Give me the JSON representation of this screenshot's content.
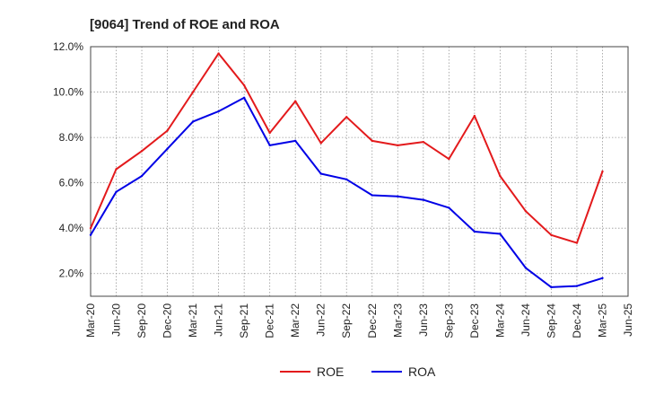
{
  "chart_data": {
    "type": "line",
    "title": "[9064]  Trend of ROE and ROA",
    "xlabel": "",
    "ylabel": "",
    "x": [
      "Mar-20",
      "Jun-20",
      "Sep-20",
      "Dec-20",
      "Mar-21",
      "Jun-21",
      "Sep-21",
      "Dec-21",
      "Mar-22",
      "Jun-22",
      "Sep-22",
      "Dec-22",
      "Mar-23",
      "Jun-23",
      "Sep-23",
      "Dec-23",
      "Mar-24",
      "Jun-24",
      "Sep-24",
      "Dec-24",
      "Mar-25",
      "Jun-25"
    ],
    "ylim": [
      1.0,
      12.0
    ],
    "yticks": [
      "2.0%",
      "4.0%",
      "6.0%",
      "8.0%",
      "10.0%",
      "12.0%"
    ],
    "ytick_values": [
      2.0,
      4.0,
      6.0,
      8.0,
      10.0,
      12.0
    ],
    "grid": true,
    "legend_position": "bottom-center",
    "series": [
      {
        "name": "ROE",
        "color": "#e31a1c",
        "values": [
          4.0,
          6.6,
          7.4,
          8.3,
          10.0,
          11.7,
          10.3,
          8.2,
          9.6,
          7.75,
          8.9,
          7.85,
          7.65,
          7.8,
          7.05,
          8.95,
          6.3,
          4.75,
          3.7,
          3.35,
          6.5,
          null
        ]
      },
      {
        "name": "ROA",
        "color": "#0000e6",
        "values": [
          3.7,
          5.6,
          6.3,
          7.5,
          8.7,
          9.15,
          9.75,
          7.65,
          7.85,
          6.4,
          6.15,
          5.45,
          5.4,
          5.25,
          4.9,
          3.85,
          3.75,
          2.25,
          1.4,
          1.45,
          1.8,
          null
        ]
      }
    ]
  }
}
